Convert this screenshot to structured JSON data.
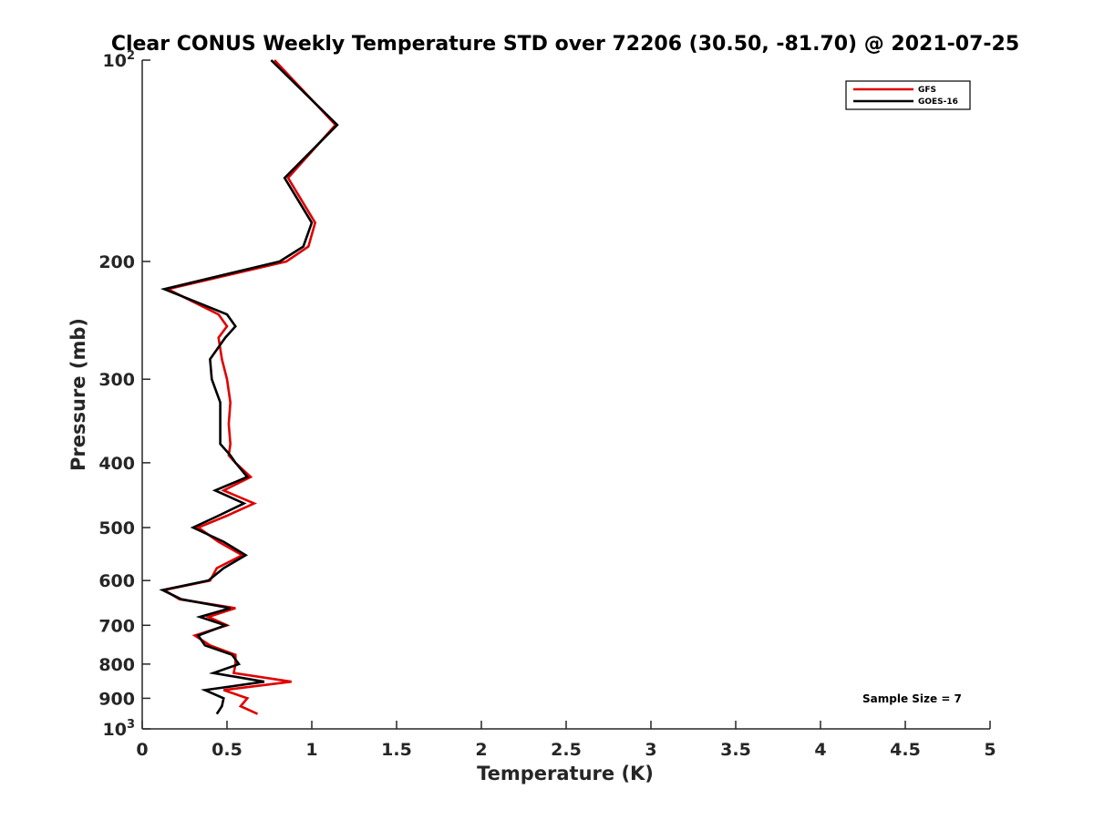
{
  "chart_data": {
    "type": "line",
    "title": "Clear CONUS Weekly Temperature STD over 72206 (30.50, -81.70) @ 2021-07-25",
    "xlabel": "Temperature (K)",
    "ylabel": "Pressure (mb)",
    "xlim": [
      0,
      5
    ],
    "ylim": [
      100,
      1000
    ],
    "y_scale": "log",
    "y_reversed": true,
    "x_ticks": [
      "0",
      "0.5",
      "1",
      "1.5",
      "2",
      "2.5",
      "3",
      "3.5",
      "4",
      "4.5",
      "5"
    ],
    "y_ticks": [
      {
        "value": 100,
        "base": "10",
        "exp": "2"
      },
      {
        "value": 200,
        "label": "200"
      },
      {
        "value": 300,
        "label": "300"
      },
      {
        "value": 400,
        "label": "400"
      },
      {
        "value": 500,
        "label": "500"
      },
      {
        "value": 600,
        "label": "600"
      },
      {
        "value": 700,
        "label": "700"
      },
      {
        "value": 800,
        "label": "800"
      },
      {
        "value": 900,
        "label": "900"
      },
      {
        "value": 1000,
        "base": "10",
        "exp": "3"
      }
    ],
    "grid": false,
    "legend_position": "top-right",
    "annotation": "Sample Size = 7",
    "series": [
      {
        "name": "GFS",
        "color": "#e00000",
        "points": [
          [
            0.78,
            100
          ],
          [
            1.14,
            125
          ],
          [
            0.86,
            150
          ],
          [
            1.02,
            175
          ],
          [
            0.98,
            190
          ],
          [
            0.85,
            200
          ],
          [
            0.15,
            220
          ],
          [
            0.45,
            240
          ],
          [
            0.5,
            250
          ],
          [
            0.45,
            260
          ],
          [
            0.47,
            280
          ],
          [
            0.5,
            300
          ],
          [
            0.52,
            325
          ],
          [
            0.51,
            350
          ],
          [
            0.52,
            375
          ],
          [
            0.51,
            390
          ],
          [
            0.55,
            400
          ],
          [
            0.64,
            420
          ],
          [
            0.48,
            440
          ],
          [
            0.66,
            460
          ],
          [
            0.5,
            480
          ],
          [
            0.33,
            500
          ],
          [
            0.45,
            525
          ],
          [
            0.59,
            550
          ],
          [
            0.44,
            575
          ],
          [
            0.4,
            600
          ],
          [
            0.13,
            620
          ],
          [
            0.22,
            640
          ],
          [
            0.55,
            660
          ],
          [
            0.39,
            680
          ],
          [
            0.5,
            700
          ],
          [
            0.31,
            725
          ],
          [
            0.4,
            750
          ],
          [
            0.55,
            775
          ],
          [
            0.55,
            800
          ],
          [
            0.54,
            825
          ],
          [
            0.88,
            850
          ],
          [
            0.48,
            875
          ],
          [
            0.62,
            900
          ],
          [
            0.58,
            925
          ],
          [
            0.68,
            950
          ]
        ]
      },
      {
        "name": "GOES-16",
        "color": "#000000",
        "points": [
          [
            0.76,
            100
          ],
          [
            1.15,
            125
          ],
          [
            0.84,
            150
          ],
          [
            1.0,
            175
          ],
          [
            0.95,
            190
          ],
          [
            0.81,
            200
          ],
          [
            0.13,
            220
          ],
          [
            0.5,
            240
          ],
          [
            0.55,
            250
          ],
          [
            0.49,
            260
          ],
          [
            0.4,
            280
          ],
          [
            0.41,
            300
          ],
          [
            0.46,
            325
          ],
          [
            0.46,
            350
          ],
          [
            0.46,
            375
          ],
          [
            0.52,
            390
          ],
          [
            0.55,
            400
          ],
          [
            0.62,
            420
          ],
          [
            0.43,
            440
          ],
          [
            0.6,
            460
          ],
          [
            0.45,
            480
          ],
          [
            0.3,
            500
          ],
          [
            0.48,
            525
          ],
          [
            0.61,
            550
          ],
          [
            0.48,
            575
          ],
          [
            0.39,
            600
          ],
          [
            0.12,
            620
          ],
          [
            0.23,
            640
          ],
          [
            0.52,
            660
          ],
          [
            0.34,
            680
          ],
          [
            0.49,
            700
          ],
          [
            0.33,
            725
          ],
          [
            0.37,
            750
          ],
          [
            0.53,
            775
          ],
          [
            0.57,
            800
          ],
          [
            0.42,
            825
          ],
          [
            0.72,
            850
          ],
          [
            0.37,
            875
          ],
          [
            0.48,
            900
          ],
          [
            0.47,
            925
          ],
          [
            0.44,
            950
          ]
        ]
      }
    ]
  }
}
